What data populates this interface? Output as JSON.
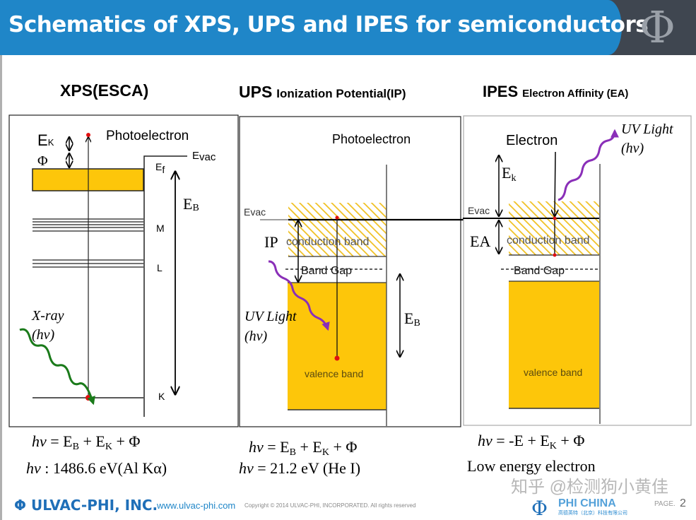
{
  "header": {
    "title": "Schematics of XPS, UPS and IPES for semiconductors",
    "logo_glyph": "Φ"
  },
  "colors": {
    "header_blue": "#1f86c8",
    "header_dark": "#3f4650",
    "band_yellow": "#fdc60a",
    "xray_green": "#1a7a1a",
    "uv_purple": "#8a2fb8",
    "electron_red": "#e01010"
  },
  "xps": {
    "title": "XPS(ESCA)",
    "photoelectron": "Photoelectron",
    "ek": "E",
    "ek_sub": "K",
    "phi": "Φ",
    "evac": "E",
    "evac_sub": "vac",
    "ef": "E",
    "ef_sub": "f",
    "eb": "E",
    "eb_sub": "B",
    "shell_m": "M",
    "shell_l": "L",
    "shell_k": "K",
    "xray": "X-ray",
    "hv": "(hv)",
    "formula": {
      "lhs": "hv",
      "eq": " = E",
      "b": "B",
      "plus1": " + E",
      "k": "K",
      "rest": " + Φ"
    },
    "energy": {
      "hv": "hv",
      "text": " : 1486.6 eV(Al Kα)"
    }
  },
  "ups": {
    "title": "UPS",
    "subtitle": "Ionization Potential(IP)",
    "photoelectron": "Photoelectron",
    "evac": "E",
    "evac_sub": "vac",
    "ip": "IP",
    "conduction": "conduction band",
    "band_gap": "Band Gap",
    "valence": "valence band",
    "eb": "E",
    "eb_sub": "B",
    "uv": "UV Light",
    "hv": "(hv)",
    "formula": {
      "lhs": "hv",
      "eq": " = E",
      "b": "B",
      "plus1": " + E",
      "k": "K",
      "rest": " + Φ"
    },
    "energy": {
      "hv": "hv",
      "text": " = 21.2 eV (He I)"
    }
  },
  "ipes": {
    "title": "IPES",
    "subtitle": "Electron Affinity (EA)",
    "electron": "Electron",
    "uv": "UV Light",
    "hv": "(hv)",
    "ek": "E",
    "ek_sub": "k",
    "evac": "E",
    "evac_sub": "vac",
    "ea": "EA",
    "conduction": "conduction band",
    "band_gap": "Band Gap",
    "valence": "valence band",
    "formula": {
      "lhs": "hv",
      "eq": " = -E + E",
      "k": "K",
      "rest": " + Φ"
    },
    "note": "Low energy electron"
  },
  "footer": {
    "company": "ULVAC-PHI, INC.",
    "url": "www.ulvac-phi.com",
    "copyright": "Copyright © 2014 ULVAC-PHI, INCORPORATED. All rights reserved",
    "partner": "PHI CHINA",
    "partner_sub": "高德英特（北京）科技有限公司",
    "page_label": "PAGE.",
    "page_number": "2",
    "watermark": "知乎 @检测狗小黄佳"
  }
}
